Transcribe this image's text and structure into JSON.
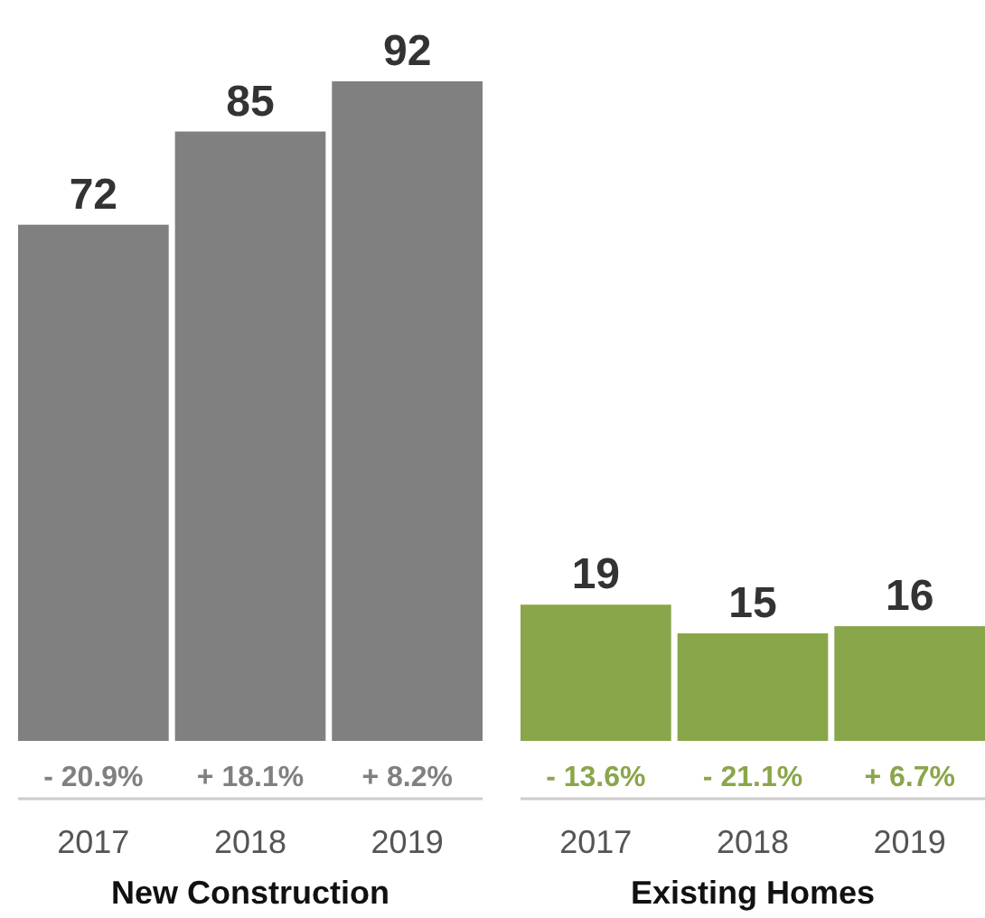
{
  "chart_data": [
    {
      "type": "bar",
      "categories": [
        "2017",
        "2018",
        "2019"
      ],
      "values": [
        72,
        85,
        92
      ],
      "color": "#808080",
      "data_labels": true,
      "xlabel": "New Construction",
      "annotations": [
        "- 20.9%",
        "+ 18.1%",
        "+ 8.2%"
      ]
    },
    {
      "type": "bar",
      "categories": [
        "2017",
        "2018",
        "2019"
      ],
      "values": [
        19,
        15,
        16
      ],
      "color": "#8aa64a",
      "data_labels": true,
      "xlabel": "Existing Homes",
      "annotations": [
        "- 13.6%",
        "- 21.1%",
        "+ 6.7%"
      ]
    }
  ]
}
